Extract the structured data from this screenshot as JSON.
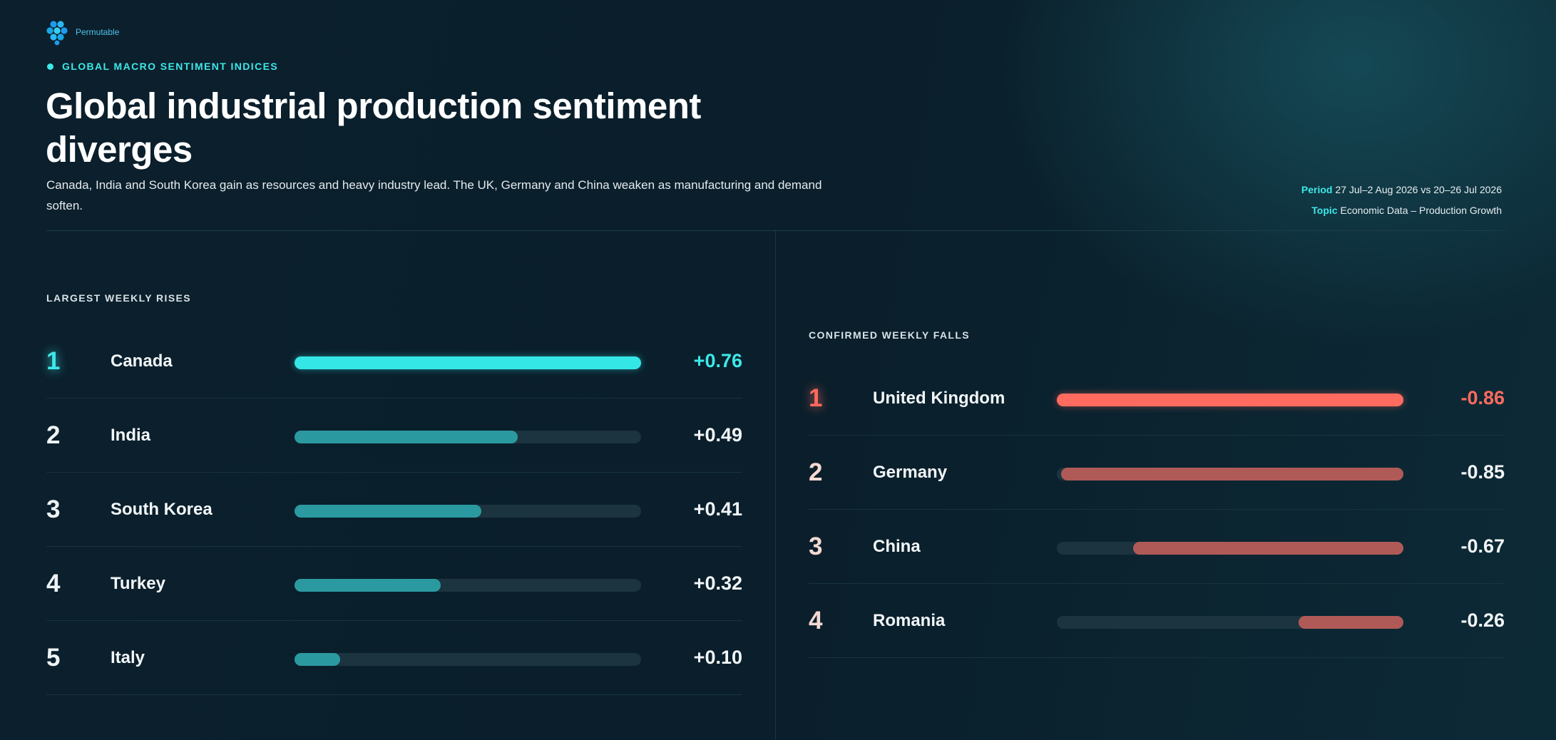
{
  "header": {
    "logo_text": "Permutable",
    "eyebrow": "GLOBAL MACRO SENTIMENT INDICES",
    "title": "Global industrial production sentiment diverges",
    "subtitle": "Canada, India and South Korea gain as resources and heavy industry lead. The UK, Germany and China weaken as manufacturing and demand soften.",
    "period_key": "Period",
    "period_value": "27 Jul–2 Aug 2026 vs 20–26 Jul 2026",
    "topic_key": "Topic",
    "topic_value": "Economic Data – Production Growth"
  },
  "colors": {
    "accent_cyan": "#3de8e8",
    "rise_bar": "#2a9aa0",
    "fall_top": "#ff6b5e",
    "fall_bar": "#b05a57",
    "track": "#1c3440"
  },
  "chart_data": [
    {
      "type": "bar",
      "title": "LARGEST WEEKLY RISES",
      "categories": [
        "Canada",
        "India",
        "South Korea",
        "Turkey",
        "Italy"
      ],
      "values": [
        0.76,
        0.49,
        0.41,
        0.32,
        0.1
      ],
      "labels": [
        "+0.76",
        "+0.49",
        "+0.41",
        "+0.32",
        "+0.10"
      ],
      "ranks": [
        "1",
        "2",
        "3",
        "4",
        "5"
      ],
      "xlim": [
        0,
        0.76
      ]
    },
    {
      "type": "bar",
      "title": "CONFIRMED WEEKLY FALLS",
      "categories": [
        "United Kingdom",
        "Germany",
        "China",
        "Romania"
      ],
      "values": [
        -0.86,
        -0.85,
        -0.67,
        -0.26
      ],
      "labels": [
        "-0.86",
        "-0.85",
        "-0.67",
        "-0.26"
      ],
      "ranks": [
        "1",
        "2",
        "3",
        "4"
      ],
      "xlim": [
        -0.86,
        0
      ]
    }
  ]
}
